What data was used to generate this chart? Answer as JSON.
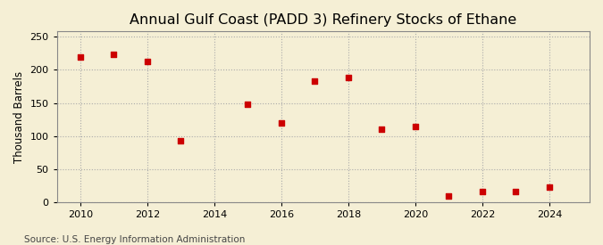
{
  "title": "Annual Gulf Coast (PADD 3) Refinery Stocks of Ethane",
  "ylabel": "Thousand Barrels",
  "source": "Source: U.S. Energy Information Administration",
  "x": [
    2010,
    2011,
    2012,
    2013,
    2015,
    2016,
    2017,
    2018,
    2019,
    2020,
    2021,
    2022,
    2023,
    2024
  ],
  "y": [
    220,
    223,
    213,
    93,
    148,
    120,
    183,
    189,
    111,
    115,
    10,
    17,
    16,
    23
  ],
  "marker_color": "#cc0000",
  "marker_size": 25,
  "bg_color": "#f5efd5",
  "grid_color": "#aaaaaa",
  "xlim": [
    2009.3,
    2025.2
  ],
  "ylim": [
    0,
    258
  ],
  "yticks": [
    0,
    50,
    100,
    150,
    200,
    250
  ],
  "xticks": [
    2010,
    2012,
    2014,
    2016,
    2018,
    2020,
    2022,
    2024
  ],
  "title_fontsize": 11.5,
  "label_fontsize": 8.5,
  "tick_fontsize": 8,
  "source_fontsize": 7.5
}
